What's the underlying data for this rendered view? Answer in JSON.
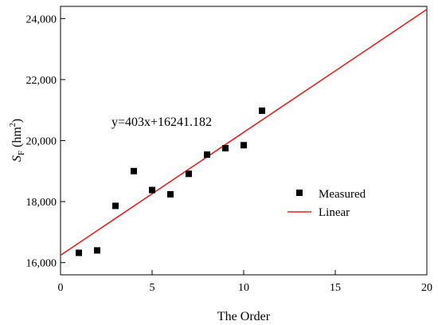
{
  "chart_data": {
    "type": "scatter",
    "title": "",
    "xlabel": "The Order",
    "ylabel": {
      "main": "S",
      "sub": "F",
      "unit_prefix": "(hm",
      "unit_sup": "2",
      "unit_suffix": ")"
    },
    "xlim": [
      0,
      20
    ],
    "ylim": [
      15600,
      24400
    ],
    "x_ticks": [
      0,
      5,
      10,
      15,
      20
    ],
    "x_tick_labels": [
      "0",
      "5",
      "10",
      "15",
      "20"
    ],
    "y_ticks": [
      16000,
      18000,
      20000,
      22000,
      24000
    ],
    "y_tick_labels": [
      "16,000",
      "18,000",
      "20,000",
      "22,000",
      "24,000"
    ],
    "grid": false,
    "legend_position": "right-middle",
    "series": [
      {
        "name": "Measured",
        "kind": "points",
        "marker": "square",
        "color": "#000000",
        "x": [
          1,
          2,
          3,
          4,
          5,
          6,
          7,
          8,
          9,
          10,
          11
        ],
        "y": [
          16320,
          16400,
          17860,
          19000,
          18380,
          18240,
          18910,
          19540,
          19750,
          19850,
          20980
        ]
      },
      {
        "name": "Linear",
        "kind": "line",
        "color": "#e8201e",
        "slope": 403,
        "intercept": 16241.182
      }
    ],
    "annotation": "y=403x+16241.182"
  }
}
